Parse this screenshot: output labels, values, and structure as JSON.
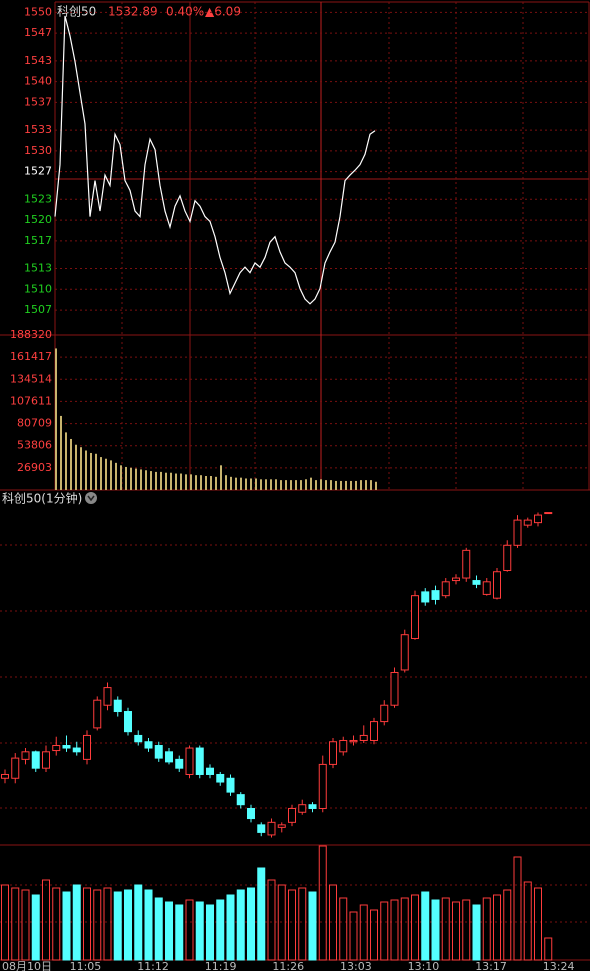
{
  "header": {
    "name": "科创50",
    "price": "1532.89",
    "change_pct": "0.40%",
    "change": "▲6.09"
  },
  "chart_data": [
    {
      "type": "line",
      "ylim": [
        1503.4,
        1551.5
      ],
      "yticks": [
        1550,
        1547,
        1543,
        1540,
        1537,
        1533,
        1530,
        1527,
        1523,
        1520,
        1517,
        1513,
        1510,
        1507
      ],
      "ytick_colors": [
        "#ff4040",
        "#ff4040",
        "#ff4040",
        "#ff4040",
        "#ff4040",
        "#ff4040",
        "#ff4040",
        "#ffffff",
        "#20d020",
        "#20d020",
        "#20d020",
        "#20d020",
        "#20d020",
        "#20d020"
      ],
      "grid": true,
      "series": [
        {
          "color": "#ffffff",
          "values": [
            1520.5,
            1528,
            1549.5,
            1546.6,
            1542.9,
            1538.4,
            1533.9,
            1520.5,
            1525.7,
            1521.3,
            1526.5,
            1525,
            1532.4,
            1530.9,
            1525.7,
            1524.3,
            1521.3,
            1520.5,
            1528,
            1531.7,
            1530.2,
            1525,
            1521.3,
            1519,
            1522,
            1523.5,
            1521.3,
            1519.8,
            1522.8,
            1522,
            1520.5,
            1519.8,
            1517.6,
            1514.6,
            1512.4,
            1509.4,
            1510.9,
            1512.4,
            1513.2,
            1512.4,
            1513.8,
            1513.2,
            1514.6,
            1516.8,
            1517.6,
            1515.4,
            1513.8,
            1513.2,
            1512.4,
            1510.1,
            1508.6,
            1507.9,
            1508.6,
            1510.1,
            1513.8,
            1515.4,
            1516.8,
            1520.5,
            1525.7,
            1526.5,
            1527.2,
            1528,
            1529.5,
            1532.4,
            1532.9
          ]
        }
      ]
    },
    {
      "type": "bar",
      "color": "#c8b46e",
      "ylim": [
        0,
        188320
      ],
      "yticks": [
        188320,
        161417,
        134514,
        107611,
        80709,
        53806,
        26903
      ],
      "ytick_color": "#ff4040",
      "grid": true,
      "values": [
        172000,
        90000,
        70000,
        62000,
        55000,
        52000,
        48000,
        45000,
        44000,
        40000,
        38000,
        36000,
        33000,
        30000,
        28000,
        27000,
        26000,
        25000,
        24000,
        23000,
        22000,
        22000,
        21000,
        21000,
        20000,
        20000,
        19000,
        19000,
        18000,
        18000,
        17000,
        17000,
        16000,
        30000,
        18000,
        16000,
        15000,
        15000,
        14000,
        14000,
        14000,
        13000,
        13000,
        13000,
        13000,
        12000,
        12000,
        12000,
        12000,
        12000,
        13000,
        15000,
        12000,
        13000,
        12000,
        12000,
        11000,
        11000,
        11000,
        11000,
        11000,
        12000,
        12000,
        12000,
        10000
      ]
    },
    {
      "type": "candlestick",
      "title": "科创50(1分钟)",
      "ylim": [
        1506.7,
        1533.7
      ],
      "up_color": "#ff3c3c",
      "down_color": "#54ffff",
      "x_labels": [
        "08月10日",
        "11:05",
        "11:12",
        "11:19",
        "11:26",
        "13:03",
        "13:10",
        "13:17",
        "13:24"
      ],
      "open": [
        1512.0,
        1512.0,
        1513.5,
        1514.1,
        1512.8,
        1514.2,
        1514.6,
        1514.4,
        1513.5,
        1516.0,
        1517.8,
        1518.2,
        1517.3,
        1515.4,
        1514.9,
        1514.6,
        1514.1,
        1513.5,
        1512.3,
        1514.4,
        1512.8,
        1512.3,
        1512.0,
        1510.7,
        1509.6,
        1508.3,
        1507.5,
        1508.1,
        1508.5,
        1509.3,
        1509.9,
        1509.6,
        1513.1,
        1514.1,
        1514.9,
        1515.0,
        1515.0,
        1516.5,
        1517.8,
        1520.6,
        1523.1,
        1526.8,
        1526.9,
        1526.5,
        1527.7,
        1527.9,
        1527.7,
        1526.6,
        1526.3,
        1528.5,
        1530.5,
        1532.1,
        1532.3,
        1533.1
      ],
      "close": [
        1512.3,
        1513.6,
        1514.1,
        1512.8,
        1514.1,
        1514.6,
        1514.4,
        1514.1,
        1515.4,
        1518.2,
        1519.2,
        1517.3,
        1515.7,
        1514.9,
        1514.4,
        1513.6,
        1513.3,
        1512.8,
        1514.4,
        1512.3,
        1512.3,
        1511.7,
        1510.9,
        1509.9,
        1508.8,
        1507.7,
        1508.5,
        1508.3,
        1509.6,
        1509.9,
        1509.6,
        1513.1,
        1514.9,
        1515.0,
        1515.0,
        1515.4,
        1516.5,
        1517.8,
        1520.4,
        1523.4,
        1526.5,
        1526.0,
        1526.2,
        1527.6,
        1527.9,
        1530.1,
        1527.4,
        1527.6,
        1528.4,
        1530.5,
        1532.5,
        1532.5,
        1532.9,
        1533.1
      ],
      "high": [
        1512.7,
        1514.0,
        1514.4,
        1514.2,
        1514.6,
        1515.3,
        1515.4,
        1514.9,
        1515.8,
        1518.5,
        1519.6,
        1518.5,
        1517.6,
        1515.8,
        1515.2,
        1514.9,
        1514.4,
        1513.8,
        1514.6,
        1514.6,
        1513.1,
        1512.5,
        1512.3,
        1510.9,
        1509.9,
        1508.5,
        1508.8,
        1508.5,
        1509.9,
        1510.3,
        1510.1,
        1513.8,
        1515.2,
        1515.3,
        1515.4,
        1516.2,
        1516.8,
        1518.2,
        1520.8,
        1523.8,
        1526.9,
        1527.1,
        1527.3,
        1527.9,
        1528.2,
        1530.3,
        1528.1,
        1527.9,
        1528.7,
        1530.9,
        1532.9,
        1532.7,
        1533.1,
        1533.1
      ],
      "low": [
        1511.6,
        1511.6,
        1513.1,
        1512.5,
        1512.5,
        1513.8,
        1514.1,
        1513.8,
        1513.1,
        1515.8,
        1517.4,
        1516.9,
        1515.4,
        1514.6,
        1514.1,
        1513.3,
        1513.1,
        1512.5,
        1512.0,
        1512.0,
        1512.0,
        1511.4,
        1510.6,
        1509.6,
        1508.5,
        1507.4,
        1507.3,
        1507.7,
        1508.2,
        1509.1,
        1509.3,
        1509.3,
        1512.8,
        1513.8,
        1514.6,
        1514.8,
        1514.7,
        1516.2,
        1517.6,
        1520.4,
        1523.0,
        1525.7,
        1525.8,
        1526.3,
        1527.4,
        1527.6,
        1527.1,
        1526.5,
        1526.2,
        1528.4,
        1530.3,
        1531.9,
        1532.0,
        1533.1
      ]
    },
    {
      "type": "volume",
      "ylim": [
        0,
        115
      ],
      "values": [
        75,
        72,
        70,
        65,
        80,
        72,
        68,
        75,
        72,
        70,
        72,
        68,
        70,
        75,
        70,
        62,
        58,
        55,
        60,
        58,
        55,
        60,
        65,
        70,
        72,
        92,
        80,
        75,
        70,
        72,
        68,
        114,
        75,
        62,
        48,
        55,
        50,
        58,
        60,
        62,
        65,
        68,
        60,
        62,
        58,
        60,
        55,
        62,
        65,
        70,
        103,
        78,
        72,
        22
      ]
    }
  ]
}
